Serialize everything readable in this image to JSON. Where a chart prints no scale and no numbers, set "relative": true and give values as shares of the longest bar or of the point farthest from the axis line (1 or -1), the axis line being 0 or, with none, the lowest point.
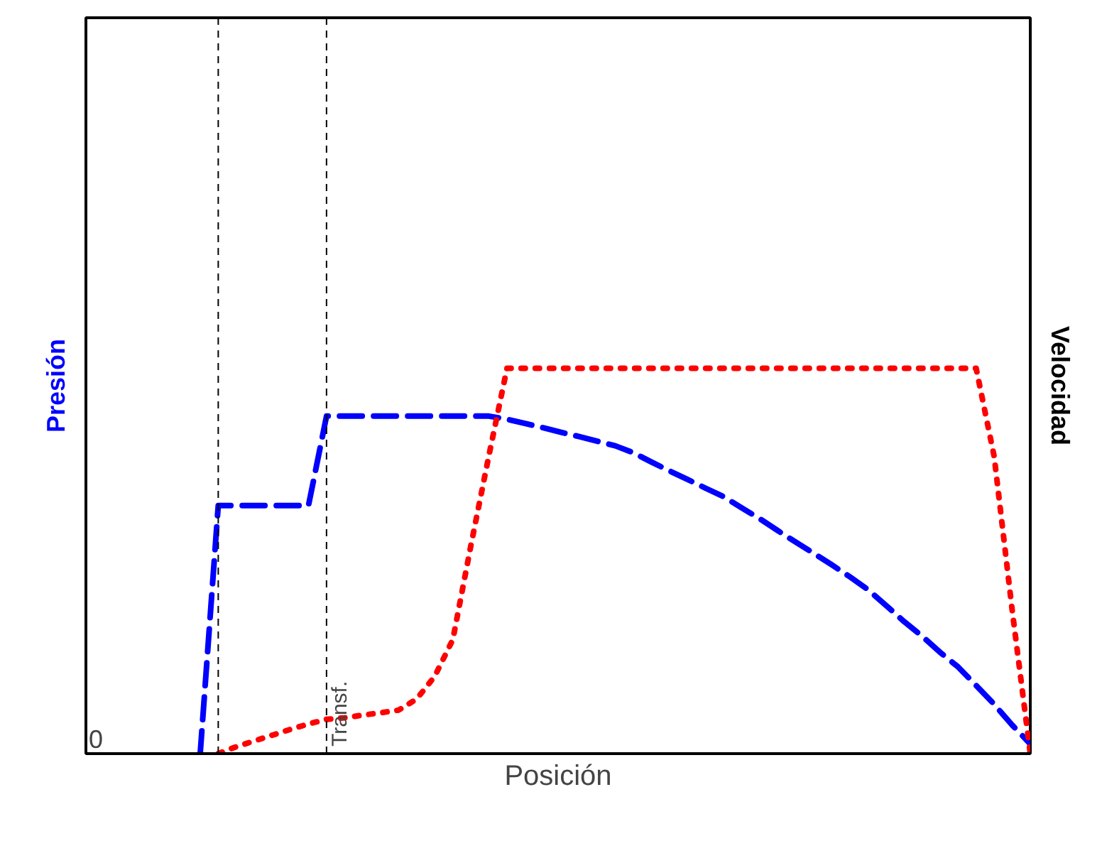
{
  "chart_data": {
    "type": "line",
    "relative": true,
    "ylabel": "Presión",
    "y2label": "Velocidad",
    "xlabel": "Posición",
    "annotations": [
      "0",
      "Transf."
    ],
    "grid": false,
    "categories": [
      null,
      null,
      null,
      null,
      null,
      null,
      null,
      null,
      null,
      null,
      null,
      null,
      null,
      null,
      null,
      null,
      null,
      null,
      null,
      null,
      null,
      null,
      null,
      null,
      null,
      null,
      null,
      null,
      null,
      null,
      null,
      null,
      null,
      null,
      null,
      null,
      null,
      null,
      null,
      null,
      null,
      null,
      null,
      null,
      null,
      null,
      null,
      null,
      null,
      null
    ],
    "series": [
      {
        "color": "#0000ff",
        "line_style": "dashed",
        "values": [
          null,
          null,
          null,
          0,
          0.644,
          0.644,
          0.644,
          0.644,
          0.644,
          0.644,
          0.876,
          0.876,
          0.876,
          0.876,
          0.876,
          0.876,
          0.876,
          0.876,
          0.876,
          0.876,
          0.868,
          0.857,
          0.846,
          0.834,
          0.823,
          0.811,
          0.799,
          0.781,
          0.757,
          0.734,
          0.712,
          0.689,
          0.667,
          0.638,
          0.61,
          0.579,
          0.549,
          0.52,
          0.49,
          0.459,
          0.426,
          0.385,
          0.343,
          0.305,
          0.263,
          0.225,
          0.177,
          0.128,
          0.074,
          0.025
        ]
      },
      {
        "color": "#ff0000",
        "line_style": "dotted",
        "values": [
          null,
          null,
          null,
          null,
          0,
          0.018,
          0.033,
          0.048,
          0.063,
          0.077,
          0.089,
          0.093,
          0.1,
          0.106,
          0.113,
          0.142,
          0.201,
          0.296,
          0.54,
          0.774,
          1,
          1,
          1,
          1,
          1,
          1,
          1,
          1,
          1,
          1,
          1,
          1,
          1,
          1,
          1,
          1,
          1,
          1,
          1,
          1,
          1,
          1,
          1,
          1,
          1,
          1,
          1,
          0.771,
          0.371,
          0
        ]
      }
    ]
  }
}
